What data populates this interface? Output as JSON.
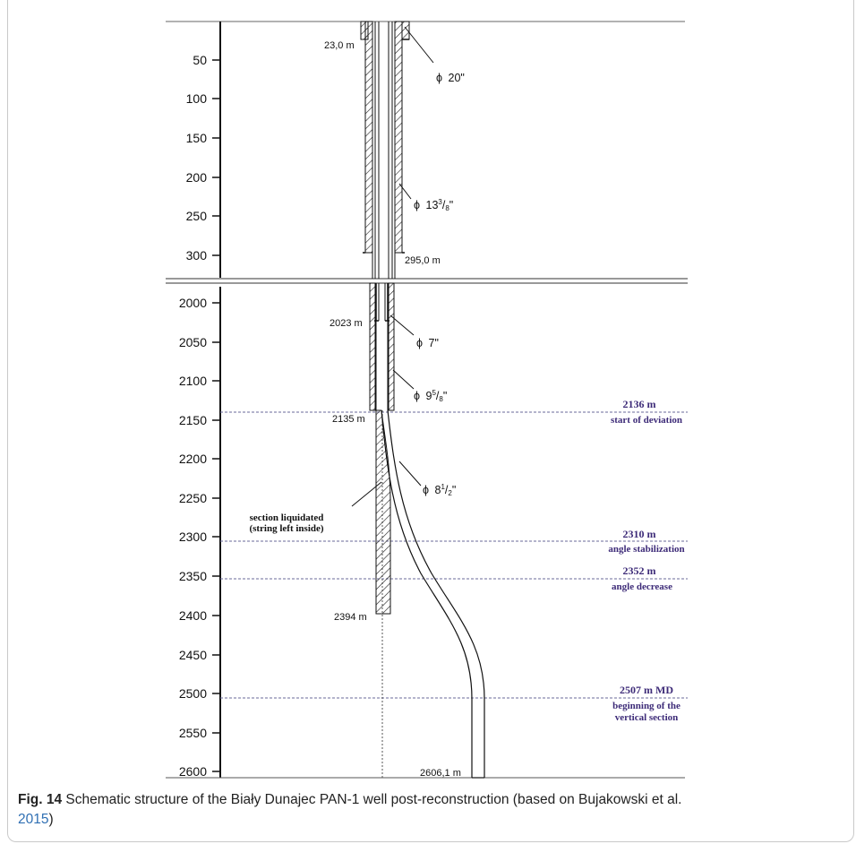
{
  "upper_axis_ticks": [
    "50",
    "100",
    "150",
    "200",
    "250",
    "300"
  ],
  "lower_axis_ticks": [
    "2000",
    "2050",
    "2100",
    "2150",
    "2200",
    "2250",
    "2300",
    "2350",
    "2400",
    "2450",
    "2500",
    "2550",
    "2600"
  ],
  "depth_marks": {
    "conductor_shoe": "23,0 m",
    "surface_casing_shoe": "295,0 m",
    "liner_top": "2023 m",
    "casing_shoe": "2135 m",
    "plug_bottom": "2394 m",
    "total_depth": "2606,1 m"
  },
  "casing_labels": {
    "conductor": {
      "phi": "ϕ",
      "size": "20\""
    },
    "surface": {
      "phi": "ϕ",
      "whole": "13",
      "num": "3",
      "den": "8",
      "inch": "\""
    },
    "liner": {
      "phi": "ϕ",
      "size": "7\""
    },
    "intermediate": {
      "phi": "ϕ",
      "whole": "9",
      "num": "5",
      "den": "8",
      "inch": "\""
    },
    "open_hole": {
      "phi": "ϕ",
      "whole": "8",
      "num": "1",
      "den": "2",
      "inch": "\""
    }
  },
  "events": [
    {
      "depth": "2136 m",
      "label": "start of deviation"
    },
    {
      "depth": "2310 m",
      "label": "angle stabilization"
    },
    {
      "depth": "2352 m",
      "label": "angle decrease"
    },
    {
      "depth": "2507 m MD",
      "label1": "beginning of the",
      "label2": "vertical section"
    }
  ],
  "liquidated_note": {
    "line1": "section liquidated",
    "line2": "(string left inside)"
  },
  "caption": {
    "label": "Fig. 14",
    "text": "Schematic structure of the Biały Dunajec PAN-1 well post-reconstruction (based on Bujakowski et al.",
    "year": "2015",
    "close": ")"
  },
  "colors": {
    "event_text": "#3d2b78",
    "event_line": "#6a6a9a",
    "reference_link": "#2f6fb3"
  }
}
